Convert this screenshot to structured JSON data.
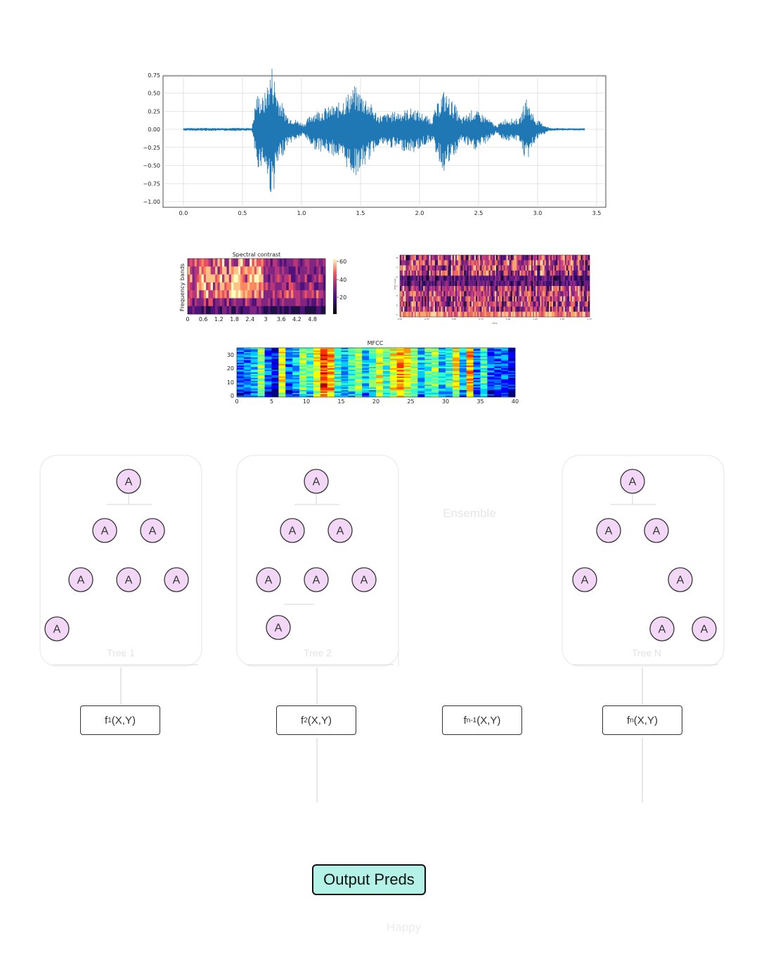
{
  "waveform": {
    "xticks": [
      "0.0",
      "0.5",
      "1.0",
      "1.5",
      "2.0",
      "2.5",
      "3.0",
      "3.5"
    ],
    "yticks": [
      "0.75",
      "0.50",
      "0.25",
      "0.00",
      "−0.25",
      "−0.50",
      "−0.75",
      "−1.00"
    ],
    "color": "#1f77b4"
  },
  "spectral_contrast": {
    "title": "Spectral contrast",
    "ylabel": "Frequency bands",
    "xticks": [
      "0",
      "0.6",
      "1.2",
      "1.8",
      "2.4",
      "3",
      "3.6",
      "4.2",
      "4.8"
    ],
    "colorbar_ticks": [
      "60",
      "40",
      "20"
    ]
  },
  "tempogram": {
    "ylabel": "Pitch class",
    "xlabel": "Time",
    "yticks": [
      "B",
      "A",
      "G",
      "F",
      "E",
      "D",
      "C"
    ],
    "xticks": [
      "0.00",
      "0.25",
      "0.50",
      "0.75",
      "1.00",
      "1.25",
      "1.50",
      "1.75"
    ]
  },
  "mfcc": {
    "title": "MFCC",
    "xticks": [
      "0",
      "5",
      "10",
      "15",
      "20",
      "25",
      "30",
      "35",
      "40"
    ],
    "yticks": [
      "30",
      "20",
      "10",
      "0"
    ]
  },
  "trees": {
    "node_label": "A",
    "tree1_label": "Tree 1",
    "tree2_label": "Tree 2",
    "treen_label": "Tree N",
    "ellipsis_label": "Ensemble"
  },
  "functions": {
    "f1": {
      "name": "f",
      "sub": "1",
      "args": "(X,Y)"
    },
    "f2": {
      "name": "f",
      "sub": "2",
      "args": "(X,Y)"
    },
    "fn1": {
      "name": "f",
      "sub": "n-1",
      "args": "(X,Y)"
    },
    "fn": {
      "name": "f",
      "sub": "n",
      "args": "(X,Y)"
    }
  },
  "output": {
    "button_label": "Output Preds",
    "prediction": "Happy"
  }
}
